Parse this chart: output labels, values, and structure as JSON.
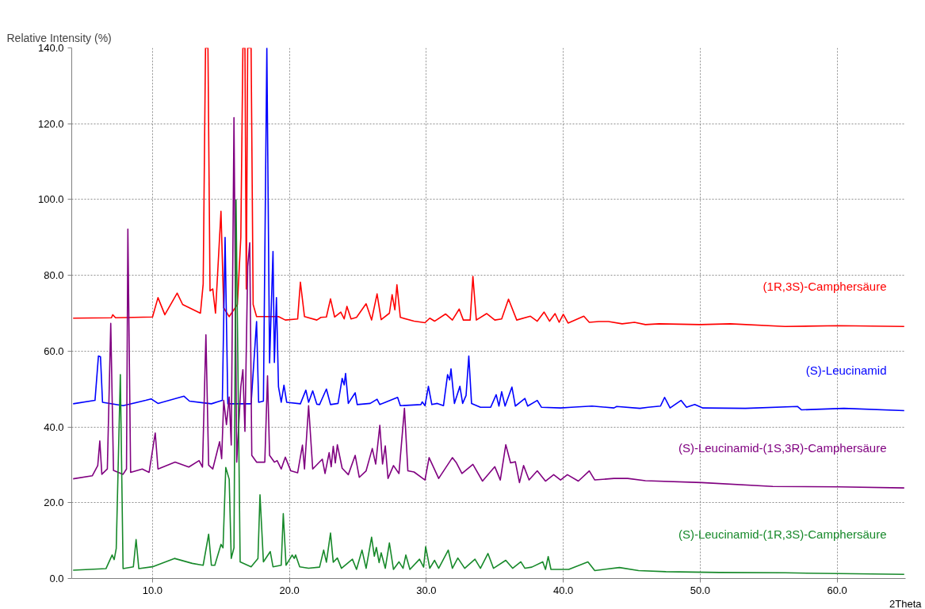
{
  "chart_data": {
    "type": "line",
    "xlabel": "2Theta",
    "ylabel": "Relative Intensity (%)",
    "xlim": [
      4.1,
      65.0
    ],
    "ylim": [
      0,
      140
    ],
    "xticks": [
      {
        "value": 10,
        "label": "10.0"
      },
      {
        "value": 20,
        "label": "20.0"
      },
      {
        "value": 30,
        "label": "30.0"
      },
      {
        "value": 40,
        "label": "40.0"
      },
      {
        "value": 50,
        "label": "50.0"
      },
      {
        "value": 60,
        "label": "60.0"
      }
    ],
    "yticks": [
      {
        "value": 0,
        "label": "0.0"
      },
      {
        "value": 20,
        "label": "20.0"
      },
      {
        "value": 40,
        "label": "40.0"
      },
      {
        "value": 60,
        "label": "60.0"
      },
      {
        "value": 80,
        "label": "80.0"
      },
      {
        "value": 100,
        "label": "100.0"
      },
      {
        "value": 120,
        "label": "120.0"
      },
      {
        "value": 140,
        "label": "140.0"
      }
    ],
    "grid": true,
    "series": [
      {
        "name": "(1R,3S)-Camphersäure",
        "color": "#ff0000",
        "x": [
          4.2,
          7.0,
          7.1,
          7.3,
          10.0,
          10.4,
          10.9,
          11.8,
          12.2,
          13.5,
          13.7,
          13.87,
          14.05,
          14.2,
          14.4,
          14.6,
          15.0,
          15.2,
          15.6,
          16.2,
          16.45,
          16.6,
          16.75,
          16.85,
          16.95,
          17.2,
          17.35,
          17.6,
          19.2,
          19.7,
          20.6,
          20.8,
          21.1,
          22.0,
          22.3,
          22.7,
          23.0,
          23.3,
          23.75,
          24.0,
          24.2,
          24.5,
          24.9,
          25.6,
          26.0,
          26.4,
          26.7,
          27.3,
          27.5,
          27.7,
          27.85,
          28.1,
          29.1,
          29.9,
          30.25,
          30.6,
          31.4,
          31.9,
          32.4,
          32.7,
          33.2,
          33.4,
          33.65,
          34.4,
          35.0,
          35.5,
          36.0,
          36.6,
          37.6,
          38.1,
          38.6,
          39.0,
          39.4,
          39.7,
          40.0,
          40.35,
          41.5,
          41.9,
          42.6,
          43.3,
          44.3,
          45.2,
          46.0,
          47.0,
          50.0,
          52.2,
          56.2,
          60.1,
          64.9
        ],
        "values": [
          68.7,
          68.8,
          69.6,
          68.8,
          69.0,
          74.1,
          69.6,
          75.3,
          72.3,
          70.0,
          77.7,
          140,
          140,
          75.9,
          76.4,
          70.0,
          96.9,
          71.4,
          69.1,
          72.3,
          90,
          140,
          140,
          76.4,
          140,
          140,
          72.3,
          69.1,
          69.1,
          68.2,
          68.5,
          78.2,
          69.1,
          68.2,
          68.9,
          69,
          73.8,
          69,
          70.3,
          68.5,
          71.8,
          68.5,
          68.9,
          72.5,
          68.2,
          75.1,
          68.3,
          70,
          74.9,
          70.9,
          77.5,
          68.9,
          67.9,
          67.5,
          68.7,
          67.9,
          69.8,
          68.2,
          71.1,
          68.2,
          68.2,
          79.7,
          68.2,
          69.9,
          68.2,
          68.5,
          73.7,
          68.2,
          69.2,
          67.9,
          70.3,
          67.9,
          69.9,
          67.6,
          69.7,
          67.4,
          69.2,
          67.6,
          67.8,
          67.8,
          67.2,
          67.6,
          67.0,
          67.2,
          67.0,
          67.2,
          66.5,
          66.7,
          66.5
        ]
      },
      {
        "name": "(S)-Leucinamid",
        "color": "#0000ff",
        "x": [
          4.2,
          5.8,
          6.05,
          6.2,
          6.35,
          7.85,
          9.5,
          9.9,
          10.4,
          12.3,
          12.7,
          14.3,
          15.1,
          15.3,
          15.5,
          17.2,
          17.6,
          17.75,
          18.1,
          18.35,
          18.55,
          18.8,
          18.9,
          19.05,
          19.2,
          19.4,
          19.6,
          19.8,
          20.8,
          21.2,
          21.4,
          21.7,
          22.0,
          22.2,
          22.7,
          23.0,
          23.55,
          23.85,
          24.0,
          24.1,
          24.3,
          24.8,
          24.95,
          25.9,
          26.4,
          26.6,
          27.9,
          28.1,
          29.6,
          29.7,
          29.9,
          30.15,
          30.4,
          30.8,
          31.25,
          31.55,
          31.7,
          31.8,
          32.05,
          32.45,
          32.65,
          32.9,
          33.1,
          33.3,
          33.95,
          34.7,
          35.1,
          35.3,
          35.5,
          35.75,
          36.25,
          36.5,
          37.2,
          37.4,
          38.1,
          38.4,
          39.8,
          40.6,
          42.1,
          43.7,
          43.9,
          45.6,
          46.2,
          47.1,
          47.4,
          47.8,
          48.6,
          49.0,
          49.6,
          50.2,
          53.3,
          57.1,
          57.4,
          60.5,
          64.9
        ],
        "values": [
          46.1,
          47,
          58.7,
          58.5,
          46.5,
          45.6,
          47,
          47.4,
          46.2,
          48.1,
          46.8,
          46.1,
          47,
          90,
          46.1,
          46.1,
          67.8,
          46.5,
          46.8,
          140,
          56.9,
          86.3,
          57,
          74.1,
          50.6,
          46.5,
          51,
          46.5,
          46.1,
          49.7,
          46.5,
          49.5,
          46,
          45.9,
          50,
          45.9,
          46.2,
          52.8,
          51.1,
          54.1,
          46.2,
          49,
          45.9,
          46.2,
          47.3,
          45.9,
          47.8,
          45.6,
          45.9,
          46.6,
          45.6,
          50.7,
          45.9,
          46.2,
          45.6,
          53.8,
          52.4,
          55.3,
          46.2,
          50.7,
          46.2,
          48.3,
          58.7,
          46.2,
          45.2,
          45.2,
          48.5,
          45.5,
          49.3,
          45.5,
          50.5,
          45.5,
          47.5,
          45.5,
          47,
          45.2,
          45,
          45.2,
          45.5,
          45,
          45.4,
          44.9,
          45.2,
          45.5,
          47.8,
          45,
          47,
          45.2,
          45.9,
          45,
          44.9,
          45.4,
          44.5,
          44.9,
          44.3
        ]
      },
      {
        "name": "(S)-Leucinamid-(1S,3R)-Camphersäure",
        "color": "#800080",
        "x": [
          4.2,
          5.6,
          6.0,
          6.15,
          6.3,
          6.7,
          6.95,
          7.15,
          7.85,
          8.1,
          8.2,
          8.4,
          9.25,
          9.75,
          10.2,
          10.4,
          11.65,
          12.65,
          13.4,
          13.65,
          13.9,
          14.1,
          14.4,
          14.9,
          15.05,
          15.2,
          15.4,
          15.6,
          15.75,
          15.95,
          16.15,
          16.45,
          16.6,
          16.75,
          16.95,
          17.1,
          17.25,
          17.6,
          18.2,
          18.4,
          18.55,
          18.9,
          19.1,
          19.4,
          19.7,
          20.1,
          20.6,
          20.95,
          21.1,
          21.4,
          21.7,
          22.4,
          22.6,
          22.9,
          23.05,
          23.2,
          23.35,
          23.5,
          23.85,
          24.3,
          24.8,
          25.1,
          25.6,
          26.05,
          26.3,
          26.6,
          26.8,
          27.0,
          27.2,
          27.6,
          28.0,
          28.4,
          28.65,
          29.1,
          29.9,
          30.2,
          30.9,
          31.9,
          32.2,
          32.6,
          33.4,
          34.1,
          35.0,
          35.4,
          35.8,
          36.15,
          36.5,
          36.8,
          37.1,
          37.5,
          38.1,
          38.7,
          39.3,
          39.8,
          40.3,
          41.1,
          41.9,
          42.3,
          43.7,
          44.7,
          46.0,
          50.1,
          55.3,
          60.1,
          64.9
        ],
        "values": [
          26.3,
          27.1,
          29.8,
          36.3,
          27.5,
          28.9,
          67.3,
          28.5,
          27.5,
          28.9,
          92.2,
          28,
          28.9,
          28,
          38.4,
          28.9,
          30.7,
          29.4,
          31.1,
          29.4,
          64.3,
          29.9,
          28.9,
          36.1,
          31.6,
          47,
          40.6,
          47.9,
          35.2,
          121.6,
          30.7,
          50.6,
          55.1,
          38.8,
          82.3,
          88.6,
          32.5,
          30.7,
          30.7,
          53.5,
          32.5,
          30.7,
          31.1,
          28.9,
          32,
          28.4,
          27.9,
          35.2,
          28.9,
          45.6,
          28.9,
          31.5,
          27.7,
          33.2,
          29.5,
          34.9,
          30.5,
          35.3,
          29.1,
          27.4,
          32.5,
          26.7,
          28.4,
          34.3,
          30.2,
          40.4,
          30.2,
          35,
          26.4,
          29.8,
          27.7,
          44.9,
          28.4,
          28.1,
          26,
          31.9,
          26.4,
          31.9,
          30.5,
          27.7,
          30.1,
          25.7,
          29.5,
          26,
          35.3,
          30.5,
          30.8,
          25.3,
          29.8,
          26,
          28.4,
          25.7,
          27.4,
          26,
          27.4,
          25.7,
          28.4,
          26,
          26.4,
          26.4,
          25.8,
          25.3,
          24.3,
          24.2,
          23.9
        ]
      },
      {
        "name": "(S)-Leucinamid-(1R,3S)-Camphersäure",
        "color": "#17892a",
        "x": [
          4.2,
          6.6,
          7.05,
          7.2,
          7.35,
          7.65,
          7.85,
          8.6,
          8.8,
          9.0,
          10.0,
          11.6,
          12.9,
          13.7,
          14.1,
          14.3,
          14.55,
          15.0,
          15.15,
          15.35,
          15.6,
          15.75,
          15.95,
          16.1,
          16.4,
          17.2,
          17.7,
          17.85,
          18.1,
          18.6,
          18.8,
          19.4,
          19.55,
          19.75,
          20.2,
          20.35,
          20.45,
          20.75,
          21.4,
          22.2,
          22.5,
          22.7,
          23.0,
          23.2,
          23.5,
          23.8,
          24.6,
          24.9,
          25.3,
          25.6,
          26.0,
          26.2,
          26.35,
          26.55,
          26.7,
          27.0,
          27.3,
          27.6,
          28.0,
          28.3,
          28.5,
          28.8,
          29.5,
          29.8,
          29.95,
          30.25,
          30.6,
          30.9,
          31.6,
          31.9,
          32.3,
          32.8,
          33.55,
          33.95,
          34.5,
          34.9,
          35.8,
          36.3,
          36.9,
          37.2,
          37.7,
          38.5,
          38.7,
          38.9,
          39.1,
          40.4,
          41.8,
          42.3,
          44.1,
          45.5,
          47.5,
          51.4,
          56.2,
          60.1,
          64.9
        ],
        "values": [
          2.2,
          2.6,
          6.2,
          5,
          7.9,
          53.8,
          2.6,
          3.1,
          10.3,
          2.6,
          3.1,
          5.3,
          4,
          3.5,
          11.7,
          3.5,
          3.5,
          9,
          8.1,
          29.3,
          26.2,
          5.3,
          8.1,
          99.9,
          4.4,
          3.1,
          5.3,
          22.1,
          4.4,
          7.1,
          3.1,
          3.5,
          17.1,
          3.5,
          6.2,
          5.3,
          6.2,
          3.1,
          2.7,
          3,
          7.5,
          4.3,
          12,
          4.3,
          5.4,
          2.7,
          5.1,
          2.4,
          7.5,
          2.7,
          10.9,
          5.9,
          8.2,
          4.2,
          6.8,
          2.7,
          9.4,
          2.4,
          4.4,
          2.7,
          6.2,
          2.4,
          5.1,
          3,
          8.4,
          2.7,
          4.8,
          2.7,
          7.5,
          2.7,
          5.4,
          2.7,
          5.1,
          2.7,
          6.6,
          2.7,
          4.8,
          2.7,
          4.4,
          2.7,
          3,
          4.4,
          2.4,
          5.8,
          2.4,
          2.4,
          4.4,
          2.1,
          2.9,
          2.1,
          1.8,
          1.6,
          1.5,
          1.3,
          1.1
        ]
      }
    ]
  }
}
